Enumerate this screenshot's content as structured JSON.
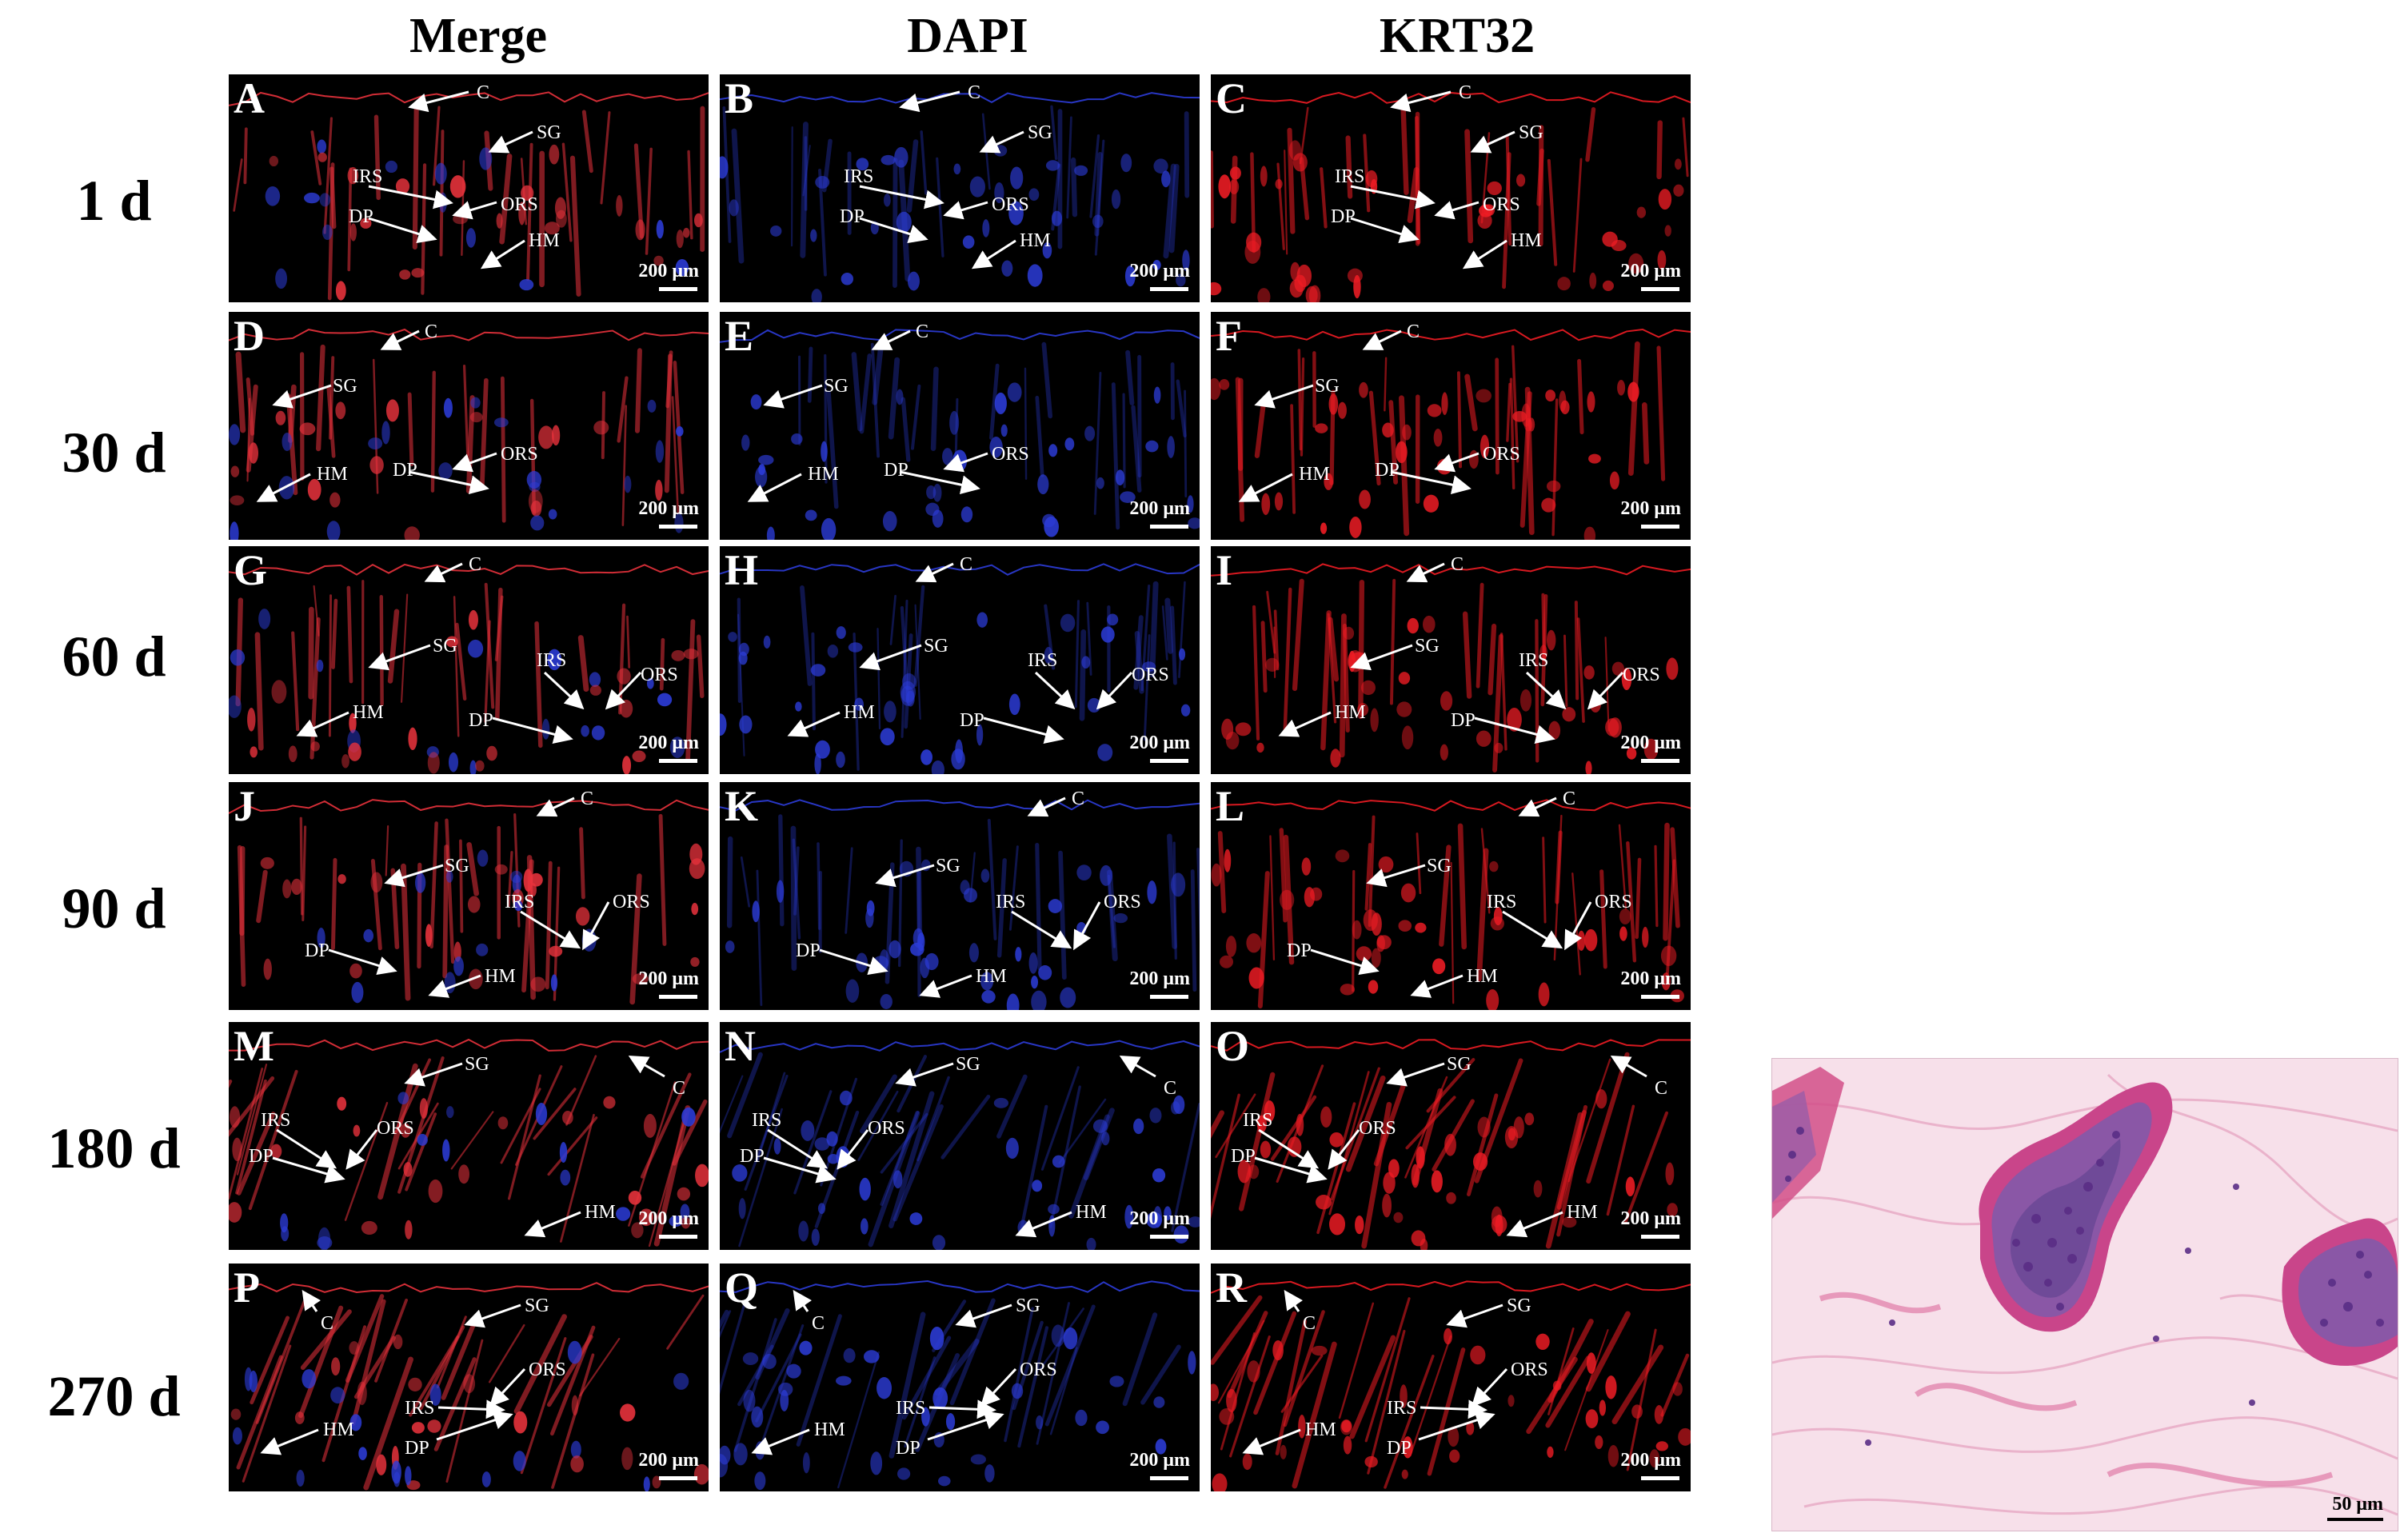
{
  "columns": [
    "Merge",
    "DAPI",
    "KRT32"
  ],
  "rows": [
    "1 d",
    "30 d",
    "60 d",
    "90 d",
    "180 d",
    "270 d"
  ],
  "panel_letters": [
    "A",
    "B",
    "C",
    "D",
    "E",
    "F",
    "G",
    "H",
    "I",
    "J",
    "K",
    "L",
    "M",
    "N",
    "O",
    "P",
    "Q",
    "R"
  ],
  "scale_label": "200 μm",
  "he_scale_label": "50 μm",
  "structure_labels": [
    "C",
    "SG",
    "IRS",
    "ORS",
    "DP",
    "HM"
  ],
  "colors": {
    "merge": "#e8323c",
    "dapi": "#2c3cd8",
    "krt32": "#ee1c24"
  }
}
